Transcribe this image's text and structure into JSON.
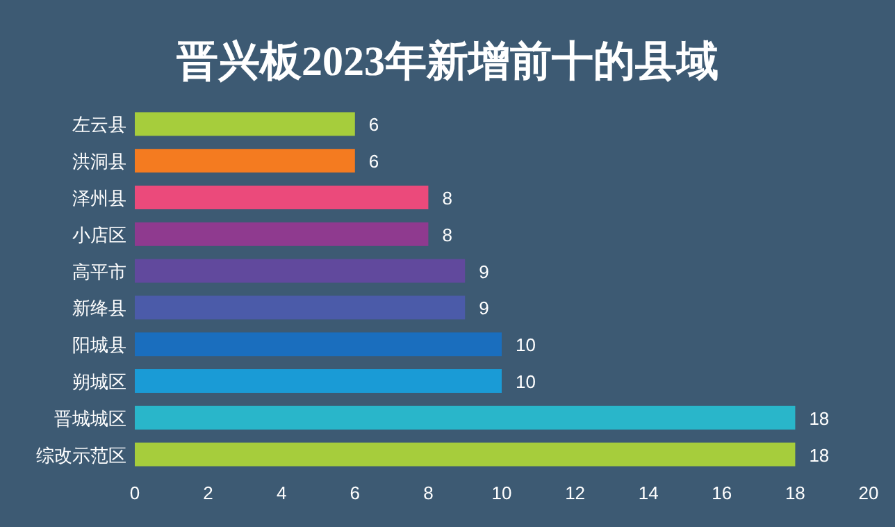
{
  "chart_data": {
    "type": "bar",
    "orientation": "horizontal",
    "title": "晋兴板2023年新增前十的县域",
    "categories": [
      "左云县",
      "洪洞县",
      "泽州县",
      "小店区",
      "高平市",
      "新绛县",
      "阳城县",
      "朔城区",
      "晋城城区",
      "综改示范区"
    ],
    "values": [
      6,
      6,
      8,
      8,
      9,
      9,
      10,
      10,
      18,
      18
    ],
    "colors": [
      "#a6cd3c",
      "#f47b20",
      "#eb4a7b",
      "#8f3a8f",
      "#61499d",
      "#4b5ba9",
      "#1a6ebe",
      "#1a9bd6",
      "#29b6ca",
      "#a6cd3c"
    ],
    "xlim": [
      0,
      20
    ],
    "xticks": [
      0,
      2,
      4,
      6,
      8,
      10,
      12,
      14,
      16,
      18,
      20
    ],
    "data_labels": true
  }
}
